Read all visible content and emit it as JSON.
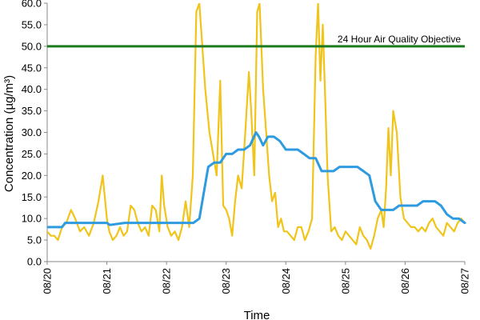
{
  "chart_data": {
    "type": "line",
    "xlabel": "Time",
    "ylabel": "Concentration (µg/m³)",
    "ylim": [
      0,
      60
    ],
    "y_ticks": [
      0,
      5,
      10,
      15,
      20,
      25,
      30,
      35,
      40,
      45,
      50,
      55,
      60
    ],
    "y_tick_labels": [
      "0.0",
      "5.0",
      "10.0",
      "15.0",
      "20.0",
      "25.0",
      "30.0",
      "35.0",
      "40.0",
      "45.0",
      "50.0",
      "55.0",
      "60.0"
    ],
    "x_tick_labels": [
      "08/20",
      "08/21",
      "08/22",
      "08/23",
      "08/24",
      "08/25",
      "08/26",
      "08/27"
    ],
    "grid": false,
    "colors": {
      "hourly": "#F0C419",
      "rolling": "#2E9BE0",
      "objective": "#1E7A1E"
    },
    "series": [
      {
        "key": "hourly",
        "x": [
          0.0,
          0.06,
          0.12,
          0.18,
          0.25,
          0.32,
          0.4,
          0.47,
          0.55,
          0.62,
          0.7,
          0.78,
          0.86,
          0.93,
          1.0,
          1.04,
          1.1,
          1.16,
          1.22,
          1.28,
          1.34,
          1.4,
          1.46,
          1.52,
          1.58,
          1.64,
          1.7,
          1.76,
          1.82,
          1.88,
          1.92,
          1.96,
          2.02,
          2.08,
          2.14,
          2.2,
          2.26,
          2.32,
          2.38,
          2.44,
          2.5,
          2.55,
          2.6,
          2.65,
          2.72,
          2.78,
          2.84,
          2.9,
          2.95,
          3.0,
          3.05,
          3.1,
          3.15,
          3.2,
          3.26,
          3.32,
          3.38,
          3.42,
          3.47,
          3.52,
          3.56,
          3.62,
          3.67,
          3.72,
          3.77,
          3.82,
          3.87,
          3.92,
          3.97,
          4.02,
          4.08,
          4.14,
          4.2,
          4.26,
          4.32,
          4.38,
          4.44,
          4.5,
          4.54,
          4.58,
          4.62,
          4.66,
          4.7,
          4.76,
          4.82,
          4.88,
          4.94,
          5.0,
          5.06,
          5.12,
          5.18,
          5.24,
          5.3,
          5.36,
          5.42,
          5.48,
          5.54,
          5.6,
          5.64,
          5.68,
          5.72,
          5.76,
          5.8,
          5.86,
          5.92,
          5.98,
          6.04,
          6.1,
          6.16,
          6.22,
          6.28,
          6.34,
          6.4,
          6.46,
          6.52,
          6.58,
          6.64,
          6.7,
          6.76,
          6.82,
          6.88,
          6.94,
          7.0
        ],
        "y": [
          7,
          6,
          6,
          5,
          8,
          9,
          12,
          10,
          7,
          8,
          6,
          9,
          14,
          20,
          10,
          7,
          5,
          6,
          8,
          6,
          7,
          13,
          12,
          9,
          7,
          8,
          6,
          13,
          12,
          7,
          20,
          13,
          8,
          6,
          7,
          5,
          8,
          14,
          8,
          20,
          58,
          60,
          50,
          40,
          30,
          25,
          20,
          42,
          13,
          12,
          10,
          6,
          14,
          20,
          17,
          30,
          44,
          35,
          20,
          58,
          60,
          40,
          30,
          20,
          14,
          16,
          8,
          10,
          7,
          7,
          6,
          5,
          8,
          8,
          5,
          7,
          10,
          48,
          60,
          42,
          55,
          38,
          20,
          7,
          8,
          6,
          5,
          7,
          6,
          5,
          4,
          8,
          6,
          5,
          3,
          6,
          10,
          12,
          8,
          17,
          31,
          20,
          35,
          30,
          15,
          10,
          9,
          8,
          8,
          7,
          8,
          7,
          9,
          10,
          8,
          7,
          6,
          9,
          8,
          7,
          9,
          10,
          9
        ]
      },
      {
        "key": "rolling",
        "x": [
          0.0,
          0.25,
          0.3,
          0.5,
          0.75,
          1.0,
          1.05,
          1.3,
          1.6,
          2.0,
          2.3,
          2.45,
          2.55,
          2.65,
          2.7,
          2.8,
          2.9,
          3.0,
          3.1,
          3.2,
          3.3,
          3.4,
          3.5,
          3.55,
          3.62,
          3.7,
          3.8,
          3.9,
          4.0,
          4.1,
          4.2,
          4.3,
          4.4,
          4.5,
          4.6,
          4.7,
          4.8,
          4.9,
          5.0,
          5.1,
          5.2,
          5.3,
          5.4,
          5.5,
          5.6,
          5.7,
          5.8,
          5.9,
          6.0,
          6.1,
          6.2,
          6.3,
          6.4,
          6.5,
          6.6,
          6.7,
          6.8,
          6.9,
          7.0
        ],
        "y": [
          8,
          8,
          9,
          9,
          9,
          9,
          8.5,
          9,
          9,
          9,
          9,
          9,
          10,
          18,
          22,
          23,
          23,
          25,
          25,
          26,
          26,
          27,
          30,
          29,
          27,
          29,
          29,
          28,
          26,
          26,
          26,
          25,
          24,
          24,
          21,
          21,
          21,
          22,
          22,
          22,
          22,
          21,
          20,
          14,
          12,
          12,
          12,
          13,
          13,
          13,
          13,
          14,
          14,
          14,
          13,
          11,
          10,
          10,
          9
        ]
      }
    ],
    "reference_line": {
      "y": 50,
      "label": "24 Hour Air Quality Objective"
    }
  }
}
